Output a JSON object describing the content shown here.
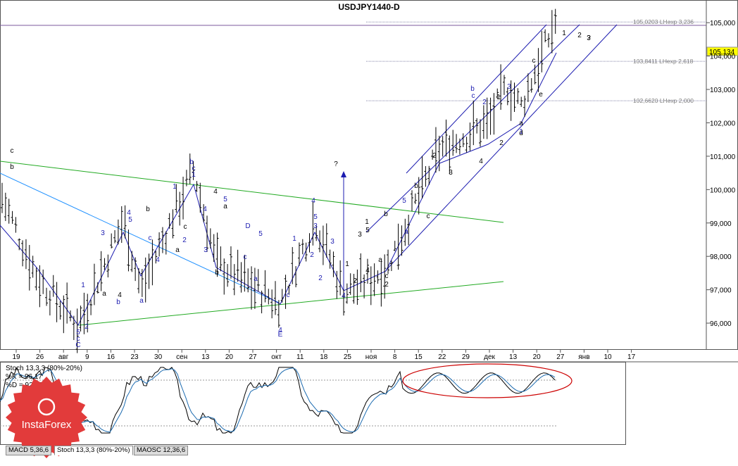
{
  "window": {
    "title": "USDJPY1440-D"
  },
  "colors": {
    "bg": "#ffffff",
    "bar": "#000000",
    "blue": "#0000c8",
    "lightblue": "#1e90ff",
    "green": "#22aa22",
    "channel": "#1c1cb0",
    "level": "#8888aa",
    "price_tag": "#ffff00",
    "stoch_main": "#000000",
    "stoch_signal": "#1c6bb0",
    "ellipse": "#cc0000",
    "logo_red": "#e23b3b"
  },
  "chart_data": {
    "type": "candlestick-ohlc",
    "symbol": "USDJPY",
    "timeframe": "D1",
    "ylim": [
      95.2,
      104.92
    ],
    "y_ticks": [
      "105,000",
      "104,000",
      "103,000",
      "102,000",
      "101,000",
      "100,000",
      "99,000",
      "98,000",
      "97,000",
      "96,000"
    ],
    "x_ticks": [
      "19",
      "26",
      "авг",
      "9",
      "16",
      "23",
      "30",
      "сен",
      "13",
      "20",
      "27",
      "окт",
      "11",
      "18",
      "25",
      "ноя",
      "8",
      "15",
      "22",
      "29",
      "дек",
      "13",
      "20",
      "27",
      "янв",
      "10",
      "17"
    ],
    "current_price": "105,134",
    "levels": [
      {
        "value": 105.0203,
        "label": "105,0203 LHexp 3,236"
      },
      {
        "value": 103.8411,
        "label": "103,8411 LHexp 2,618"
      },
      {
        "value": 102.662,
        "label": "102,6620 LHexp 2,000"
      }
    ],
    "wave_labels_blue": [
      "5",
      "c",
      "C",
      "1",
      "2",
      "3",
      "4",
      "5",
      "a",
      "b",
      "c",
      "4",
      "1",
      "2",
      "3",
      "4",
      "5",
      "D",
      "c",
      "5",
      "a",
      "b",
      "c",
      "1",
      "2",
      "3",
      "4",
      "5",
      "c",
      "E",
      "4",
      "1",
      "2",
      "3",
      "4",
      "5",
      "a",
      "b",
      "c",
      "2",
      "3",
      "1",
      "2",
      "1",
      "2",
      "3",
      "4",
      "5",
      "3",
      "4",
      "5",
      "e",
      "4"
    ],
    "wave_labels_black": [
      "b",
      "c",
      "a",
      "4",
      "b",
      "c",
      "a",
      "4",
      "b",
      "a",
      "b",
      "c",
      "2",
      "1",
      "5",
      "3",
      "1",
      "4",
      "2",
      "a",
      "b",
      "c",
      "2",
      "3",
      "4",
      "1",
      "2",
      "d",
      "a",
      "c",
      "e",
      "1",
      "2",
      "3",
      "?",
      "?"
    ],
    "question_marks": [
      "?",
      "?"
    ],
    "stochastic": {
      "title": "Stoch 13,3,3 (80%-20%)",
      "k_label": "%K = 96,17",
      "d_label": "%D = 92,92",
      "levels": [
        "80",
        "20"
      ]
    }
  },
  "tabs": [
    {
      "label": "MACD 5,36,6"
    },
    {
      "label": "Stoch 13,3,3 (80%-20%)"
    },
    {
      "label": "MAOSC 12,36,6"
    }
  ],
  "logo": {
    "text": "InstaForex"
  }
}
